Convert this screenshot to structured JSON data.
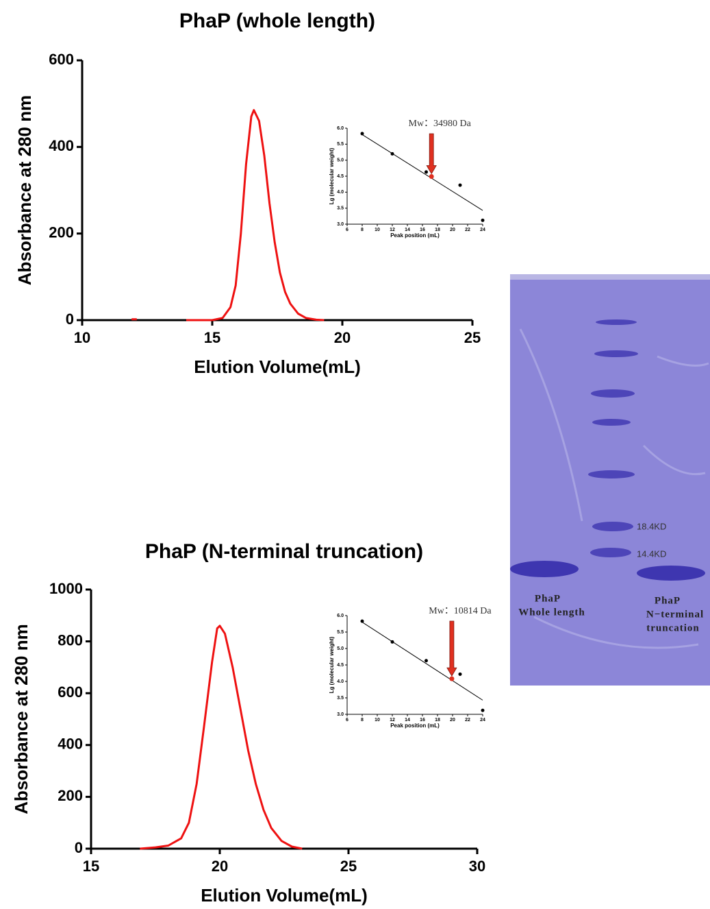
{
  "chart_data": [
    {
      "type": "line",
      "title": "PhaP (whole length)",
      "xlabel": "Elution Volume(mL)",
      "ylabel": "Absorbance at 280 nm",
      "xlim": [
        10,
        25
      ],
      "xticks": [
        10,
        15,
        20,
        25
      ],
      "ylim": [
        0,
        600
      ],
      "yticks": [
        0,
        200,
        400,
        600
      ],
      "color": "#ee1111",
      "x": [
        11.9,
        12.1,
        13,
        14.0,
        15.0,
        15.4,
        15.7,
        15.9,
        16.1,
        16.3,
        16.5,
        16.6,
        16.8,
        17.0,
        17.2,
        17.4,
        17.6,
        17.8,
        18.0,
        18.3,
        18.6,
        19.0,
        19.3
      ],
      "values": [
        2,
        2,
        null,
        0,
        0,
        5,
        30,
        80,
        200,
        360,
        470,
        485,
        460,
        380,
        270,
        180,
        110,
        65,
        38,
        15,
        5,
        1,
        0
      ]
    },
    {
      "type": "scatter",
      "xlabel": "Peak position (mL)",
      "ylabel": "Lg (molecular weight)",
      "xlim": [
        6,
        24
      ],
      "xticks": [
        6,
        8,
        10,
        12,
        14,
        16,
        18,
        20,
        22,
        24
      ],
      "ylim": [
        3,
        6
      ],
      "yticks": [
        {
          "value": 3,
          "label": "3.0"
        },
        {
          "value": 3.5,
          "label": "3.5"
        },
        {
          "value": 4,
          "label": "4.0"
        },
        {
          "value": 4.5,
          "label": "4.5"
        },
        {
          "value": 5,
          "label": "5.0"
        },
        {
          "value": 5.5,
          "label": "5.5"
        },
        {
          "value": 6,
          "label": "6.0"
        }
      ],
      "x": [
        8,
        12,
        16.5,
        21,
        24
      ],
      "values": [
        5.83,
        5.2,
        4.63,
        4.22,
        3.12
      ],
      "color": "#000000",
      "fit": {
        "x": [
          8,
          24
        ],
        "y": [
          5.8,
          3.43
        ]
      },
      "highlight": {
        "x": 17.2,
        "y": 4.49,
        "label": "Mw：34980 Da",
        "color": "#e03020"
      }
    },
    {
      "type": "line",
      "title": "PhaP (N-terminal truncation)",
      "xlabel": "Elution Volume(mL)",
      "ylabel": "Absorbance at 280 nm",
      "xlim": [
        15,
        30
      ],
      "xticks": [
        15,
        20,
        25,
        30
      ],
      "ylim": [
        0,
        1000
      ],
      "yticks": [
        0,
        200,
        400,
        600,
        800,
        1000
      ],
      "color": "#ee1111",
      "x": [
        16.9,
        17.5,
        18.0,
        18.5,
        18.8,
        19.1,
        19.4,
        19.7,
        19.9,
        20.0,
        20.2,
        20.5,
        20.8,
        21.1,
        21.4,
        21.7,
        22.0,
        22.4,
        22.8,
        23.2
      ],
      "values": [
        0,
        5,
        12,
        40,
        100,
        250,
        480,
        720,
        850,
        860,
        830,
        700,
        540,
        380,
        250,
        150,
        80,
        30,
        8,
        0
      ]
    },
    {
      "type": "scatter",
      "xlabel": "Peak position (mL)",
      "ylabel": "Lg (molecular weight)",
      "xlim": [
        6,
        24
      ],
      "xticks": [
        6,
        8,
        10,
        12,
        14,
        16,
        18,
        20,
        22,
        24
      ],
      "ylim": [
        3,
        6
      ],
      "yticks": [
        {
          "value": 3,
          "label": "3.0"
        },
        {
          "value": 3.5,
          "label": "3.5"
        },
        {
          "value": 4,
          "label": "4.0"
        },
        {
          "value": 4.5,
          "label": "4.5"
        },
        {
          "value": 5,
          "label": "5.0"
        },
        {
          "value": 5.5,
          "label": "5.5"
        },
        {
          "value": 6,
          "label": "6.0"
        }
      ],
      "x": [
        8,
        12,
        16.5,
        21,
        24
      ],
      "values": [
        5.83,
        5.2,
        4.63,
        4.22,
        3.12
      ],
      "color": "#000000",
      "fit": {
        "x": [
          8,
          24
        ],
        "y": [
          5.8,
          3.43
        ]
      },
      "highlight": {
        "x": 19.9,
        "y": 4.08,
        "label": "Mw：10814 Da",
        "color": "#e03020"
      }
    }
  ],
  "gel": {
    "markers": [
      "18.4KD",
      "14.4KD"
    ],
    "lanes": [
      [
        "PhaP",
        "Whole length"
      ],
      [
        "PhaP",
        "N−terminal",
        "truncation"
      ]
    ]
  }
}
